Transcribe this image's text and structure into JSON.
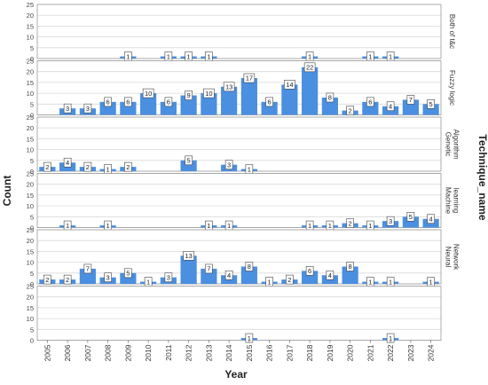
{
  "chart_data": {
    "type": "bar",
    "facet_by": "Technique_name",
    "xlabel": "Year",
    "ylabel": "Count",
    "facet_title": "Technique_name",
    "categories": [
      "2005",
      "2006",
      "2007",
      "2008",
      "2009",
      "2010",
      "2011",
      "2012",
      "2013",
      "2014",
      "2015",
      "2016",
      "2017",
      "2018",
      "2019",
      "2020",
      "2021",
      "2022",
      "2023",
      "2024"
    ],
    "ylim": [
      0,
      25
    ],
    "yticks": [
      0,
      5,
      10,
      15,
      20,
      25
    ],
    "grid": true,
    "bar_color": "#4a8fe0",
    "panels": [
      {
        "name": "Both of t&c",
        "values": [
          null,
          null,
          null,
          null,
          1,
          null,
          1,
          1,
          1,
          null,
          null,
          null,
          null,
          1,
          null,
          null,
          1,
          1,
          null,
          null
        ]
      },
      {
        "name": "Fuzzy logic",
        "values": [
          null,
          3,
          3,
          6,
          6,
          10,
          6,
          9,
          10,
          13,
          17,
          6,
          14,
          22,
          8,
          2,
          6,
          4,
          7,
          5
        ]
      },
      {
        "name": "Genetic Algorithm",
        "values": [
          2,
          4,
          2,
          1,
          2,
          null,
          null,
          5,
          null,
          3,
          1,
          null,
          null,
          null,
          null,
          null,
          null,
          null,
          null,
          null
        ]
      },
      {
        "name": "Machine learning",
        "values": [
          null,
          1,
          null,
          1,
          null,
          null,
          null,
          null,
          1,
          1,
          null,
          null,
          null,
          1,
          1,
          2,
          1,
          3,
          5,
          4
        ]
      },
      {
        "name": "Neural Network",
        "values": [
          2,
          2,
          7,
          3,
          5,
          1,
          3,
          13,
          7,
          4,
          8,
          1,
          2,
          6,
          4,
          8,
          1,
          1,
          null,
          1
        ]
      },
      {
        "name": "",
        "values": [
          null,
          null,
          null,
          null,
          null,
          null,
          null,
          null,
          null,
          null,
          1,
          null,
          null,
          null,
          null,
          null,
          null,
          1,
          null,
          null
        ]
      }
    ]
  }
}
